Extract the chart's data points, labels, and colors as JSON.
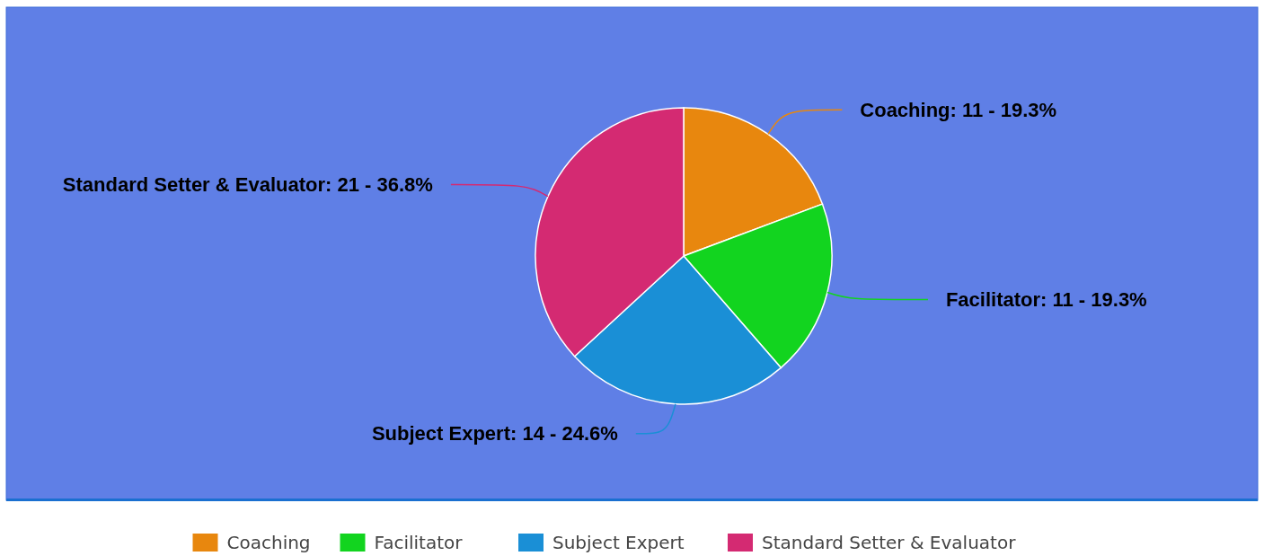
{
  "chart_data": {
    "type": "pie",
    "categories": [
      "Coaching",
      "Facilitator",
      "Subject Expert",
      "Standard Setter & Evaluator"
    ],
    "values": [
      11,
      11,
      14,
      21
    ],
    "colors": [
      "#e8870e",
      "#12d41f",
      "#1a8fd6",
      "#d42a72"
    ],
    "value_labels": [
      "Coaching: 11 - 19.3%",
      "Facilitator: 11 - 19.3%",
      "Subject Expert: 14 - 24.6%",
      "Standard Setter & Evaluator: 21 - 36.8%"
    ],
    "legend": "bottom"
  }
}
